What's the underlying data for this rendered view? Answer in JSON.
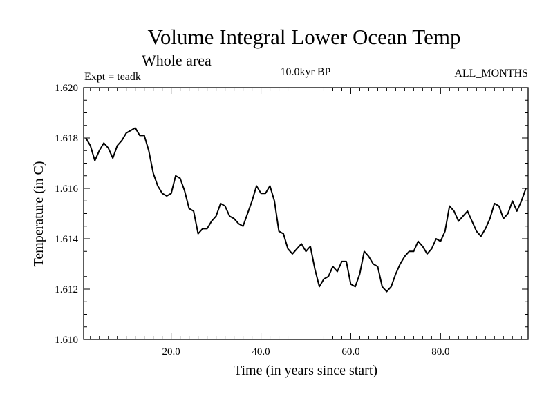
{
  "chart_data": {
    "type": "line",
    "title": "Volume Integral Lower Ocean Temp",
    "subtitle": "Whole area",
    "annotations": {
      "experiment": "Expt = teadk",
      "period": "10.0kyr BP",
      "months": "ALL_MONTHS"
    },
    "xlabel": "Time (in years since start)",
    "ylabel": "Temperature (in C)",
    "xlim": [
      0.5,
      99.5
    ],
    "ylim": [
      1.61,
      1.62
    ],
    "x_ticks": [
      20,
      40,
      60,
      80
    ],
    "x_tick_labels": [
      "20.0",
      "40.0",
      "60.0",
      "80.0"
    ],
    "x_minor_step": 2,
    "y_ticks": [
      1.61,
      1.612,
      1.614,
      1.616,
      1.618,
      1.62
    ],
    "y_tick_labels": [
      "1.610",
      "1.612",
      "1.614",
      "1.616",
      "1.618",
      "1.620"
    ],
    "y_minor_step": 0.0005,
    "grid": false,
    "series": [
      {
        "name": "Volume integral lower ocean temperature",
        "color": "#000000",
        "x": [
          1,
          2,
          3,
          4,
          5,
          6,
          7,
          8,
          9,
          10,
          11,
          12,
          13,
          14,
          15,
          16,
          17,
          18,
          19,
          20,
          21,
          22,
          23,
          24,
          25,
          26,
          27,
          28,
          29,
          30,
          31,
          32,
          33,
          34,
          35,
          36,
          37,
          38,
          39,
          40,
          41,
          42,
          43,
          44,
          45,
          46,
          47,
          48,
          49,
          50,
          51,
          52,
          53,
          54,
          55,
          56,
          57,
          58,
          59,
          60,
          61,
          62,
          63,
          64,
          65,
          66,
          67,
          68,
          69,
          70,
          71,
          72,
          73,
          74,
          75,
          76,
          77,
          78,
          79,
          80,
          81,
          82,
          83,
          84,
          85,
          86,
          87,
          88,
          89,
          90,
          91,
          92,
          93,
          94,
          95,
          96,
          97,
          98,
          99
        ],
        "values": [
          1.618,
          1.6177,
          1.6171,
          1.6175,
          1.6178,
          1.6176,
          1.6172,
          1.6177,
          1.6179,
          1.6182,
          1.6183,
          1.6184,
          1.6181,
          1.6181,
          1.6175,
          1.6166,
          1.6161,
          1.6158,
          1.6157,
          1.6158,
          1.6165,
          1.6164,
          1.6159,
          1.6152,
          1.6151,
          1.6142,
          1.6144,
          1.6144,
          1.6147,
          1.6149,
          1.6154,
          1.6153,
          1.6149,
          1.6148,
          1.6146,
          1.6145,
          1.615,
          1.6155,
          1.6161,
          1.6158,
          1.6158,
          1.6161,
          1.6155,
          1.6143,
          1.6142,
          1.6136,
          1.6134,
          1.6136,
          1.6138,
          1.6135,
          1.6137,
          1.6128,
          1.6121,
          1.6124,
          1.6125,
          1.6129,
          1.6127,
          1.6131,
          1.6131,
          1.6122,
          1.6121,
          1.6126,
          1.6135,
          1.6133,
          1.613,
          1.6129,
          1.6121,
          1.6119,
          1.6121,
          1.6126,
          1.613,
          1.6133,
          1.6135,
          1.6135,
          1.6139,
          1.6137,
          1.6134,
          1.6136,
          1.614,
          1.6139,
          1.6143,
          1.6153,
          1.6151,
          1.6147,
          1.6149,
          1.6151,
          1.6147,
          1.6143,
          1.6141,
          1.6144,
          1.6148,
          1.6154,
          1.6153,
          1.6148,
          1.615,
          1.6155,
          1.6151,
          1.6155,
          1.616
        ]
      }
    ]
  }
}
